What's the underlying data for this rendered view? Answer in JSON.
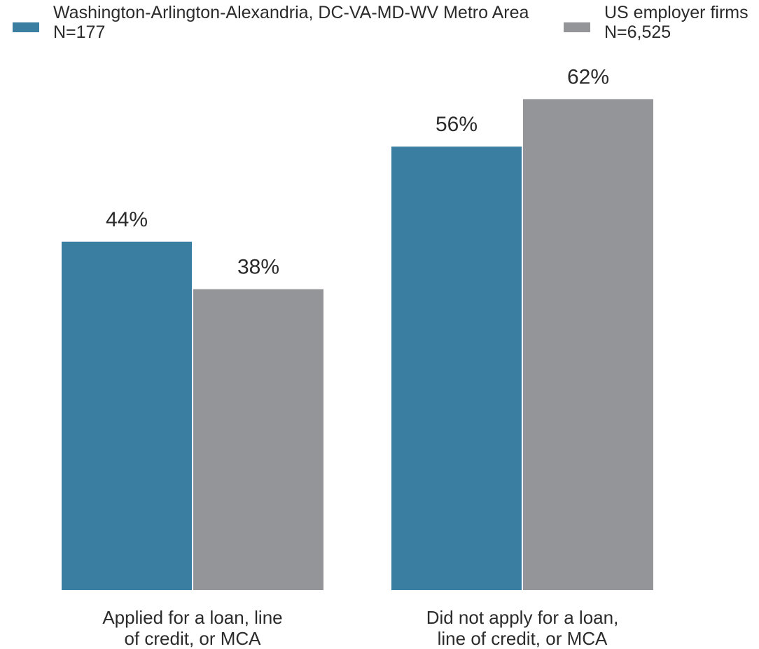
{
  "chart_data": {
    "type": "bar",
    "categories": [
      [
        "Applied for a loan, line",
        "of credit, or MCA"
      ],
      [
        "Did not apply for a loan,",
        "line of credit, or MCA"
      ]
    ],
    "series": [
      {
        "name": "Washington-Arlington-Alexandria, DC-VA-MD-WV Metro Area",
        "n_label": "N=177",
        "color": "#3a7ea1",
        "values": [
          44,
          56
        ],
        "value_labels": [
          "44%",
          "56%"
        ]
      },
      {
        "name": "US employer firms",
        "n_label": "N=6,525",
        "color": "#939598",
        "values": [
          38,
          62
        ],
        "value_labels": [
          "38%",
          "62%"
        ]
      }
    ],
    "ylim": [
      0,
      100
    ],
    "legend": "top",
    "grid": false
  }
}
